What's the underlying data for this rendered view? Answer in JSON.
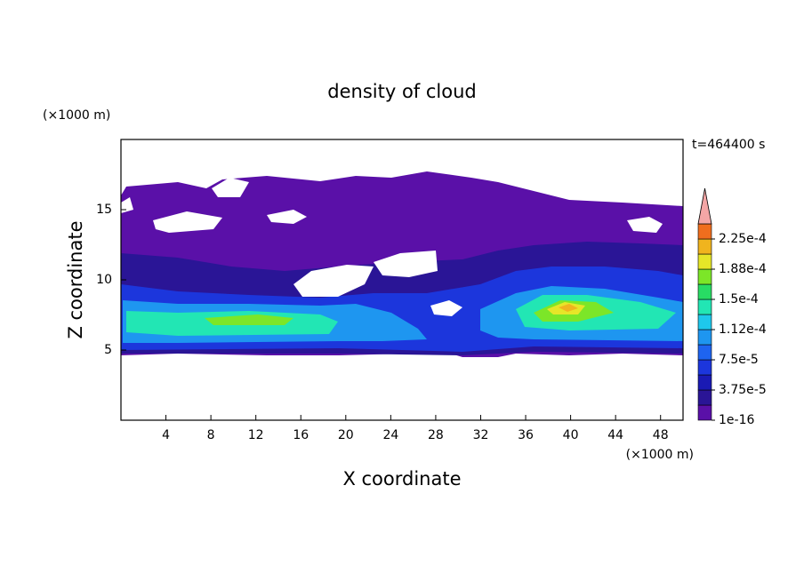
{
  "chart_data": {
    "type": "contour",
    "title": "density of cloud",
    "x_label": "X coordinate",
    "y_label": "Z coordinate",
    "x_unit": "(×1000 m)",
    "y_unit": "(×1000 m)",
    "time_label": "t=464400 s",
    "xlim": [
      0,
      50
    ],
    "xticks": [
      4,
      8,
      12,
      16,
      20,
      24,
      28,
      32,
      36,
      40,
      44,
      48
    ],
    "ylim": [
      0,
      20
    ],
    "yticks": [
      5,
      10,
      15
    ],
    "colorbar": {
      "lim": [
        1e-16,
        0.00024375
      ],
      "ticks": [
        1e-16,
        {
          "value": 3.75e-05,
          "label": "3.75e-5"
        },
        {
          "value": 7.5e-05,
          "label": "7.5e-5"
        },
        {
          "value": 0.0001125,
          "label": "1.12e-4"
        },
        {
          "value": 0.00015,
          "label": "1.5e-4"
        },
        {
          "value": 0.0001875,
          "label": "1.88e-4"
        },
        {
          "value": 0.000225,
          "label": "2.25e-4"
        }
      ],
      "colors": [
        "#5a10a8",
        "#2a1596",
        "#1a1ab4",
        "#1c36dc",
        "#1e64f0",
        "#1e96f0",
        "#1ec8ec",
        "#22e6b4",
        "#28dc64",
        "#7ce628",
        "#e6e628",
        "#f0b41e",
        "#f06e1e",
        "#e61e1e"
      ],
      "extend_color": "#f4a6a6"
    }
  }
}
